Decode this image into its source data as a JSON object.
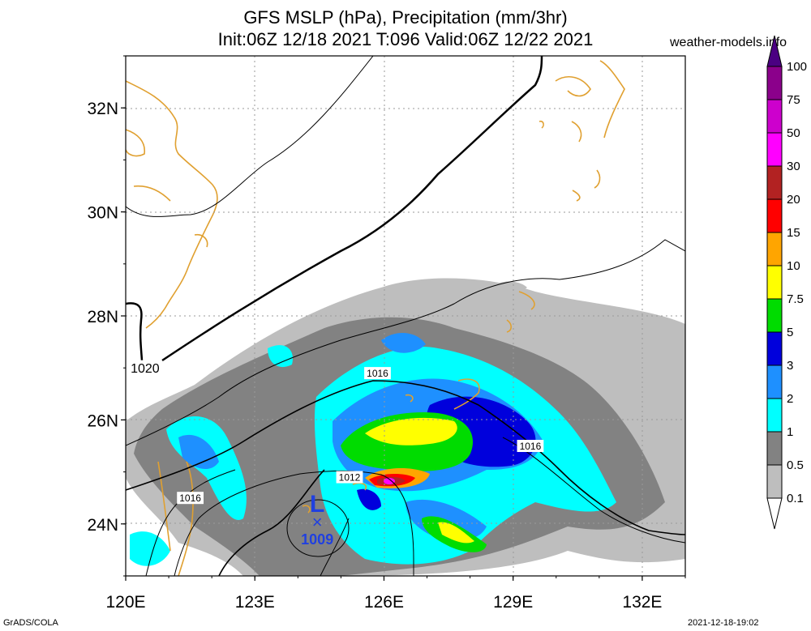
{
  "title": {
    "line1": "GFS MSLP (hPa), Precipitation (mm/3hr)",
    "line2": "Init:06Z 12/18 2021 T:096 Valid:06Z 12/22 2021"
  },
  "watermark": "weather-models.info",
  "footer": {
    "left": "GrADS/COLA",
    "right": "2021-12-18-19:02"
  },
  "map": {
    "lon_range": [
      120,
      133
    ],
    "lat_range": [
      23,
      33
    ],
    "lon_ticks": [
      {
        "value": 120,
        "label": "120E"
      },
      {
        "value": 123,
        "label": "123E"
      },
      {
        "value": 126,
        "label": "126E"
      },
      {
        "value": 129,
        "label": "129E"
      },
      {
        "value": 132,
        "label": "132E"
      }
    ],
    "lat_ticks": [
      {
        "value": 24,
        "label": "24N"
      },
      {
        "value": 26,
        "label": "26N"
      },
      {
        "value": 28,
        "label": "28N"
      },
      {
        "value": 30,
        "label": "30N"
      },
      {
        "value": 32,
        "label": "32N"
      }
    ],
    "isobar_labels": [
      {
        "text": "1020",
        "lon": 120.45,
        "lat": 27.0
      },
      {
        "text": "1016",
        "lon": 125.85,
        "lat": 26.9
      },
      {
        "text": "1016",
        "lon": 121.5,
        "lat": 24.5
      },
      {
        "text": "1012",
        "lon": 125.2,
        "lat": 24.9
      },
      {
        "text": "1016",
        "lon": 129.4,
        "lat": 25.5
      }
    ],
    "low_center": {
      "symbol": "L",
      "marker": "×",
      "pressure": "1009",
      "lon": 124.45,
      "lat": 24.2
    }
  },
  "colorbar": {
    "levels": [
      "0.1",
      "0.5",
      "1",
      "2",
      "3",
      "5",
      "7.5",
      "10",
      "15",
      "20",
      "30",
      "50",
      "75",
      "100"
    ],
    "colors": [
      "#bebebe",
      "#828282",
      "#00ffff",
      "#1e90ff",
      "#0000dc",
      "#00dc00",
      "#ffff00",
      "#ffa500",
      "#ff0000",
      "#b22222",
      "#ff00ff",
      "#cd00cd",
      "#8b008b",
      "#4b0082"
    ]
  },
  "colors": {
    "coast": "#e0a030",
    "isobar": "#000000",
    "low": "#2040e0",
    "grid": "#999999"
  }
}
